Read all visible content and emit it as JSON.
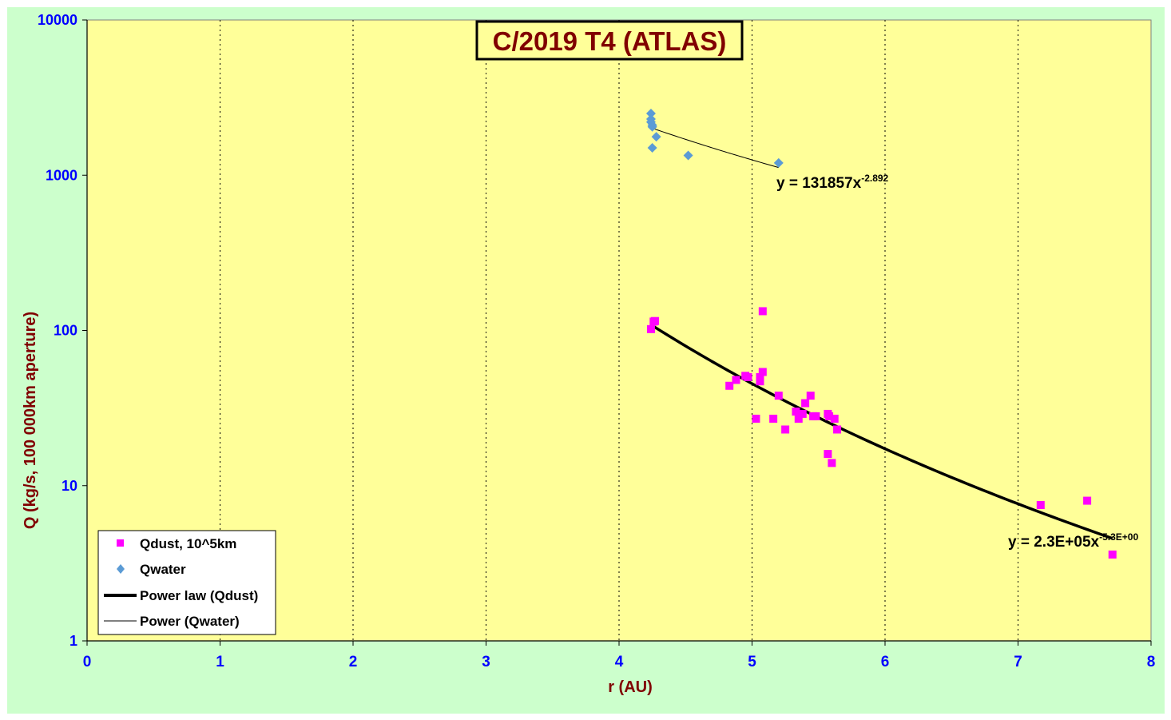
{
  "chart_data": {
    "type": "scatter",
    "title": "C/2019 T4 (ATLAS)",
    "xlabel": "r (AU)",
    "ylabel": "Q (kg/s, 100 000km aperture)",
    "xlim": [
      0,
      8
    ],
    "ylim": [
      1,
      10000
    ],
    "yscale": "log",
    "x_ticks": [
      "0",
      "1",
      "2",
      "3",
      "4",
      "5",
      "6",
      "7",
      "8"
    ],
    "y_ticks": [
      "1",
      "10",
      "100",
      "1000",
      "10000"
    ],
    "grid": "vertical",
    "legend_position": "bottom-left",
    "colors": {
      "background": "#ccffcc",
      "plot_area": "#ffff99",
      "qdust": "#ff00ff",
      "qwater": "#5b9bd5",
      "tick_labels": "#0000ff",
      "axis_titles": "#800000"
    },
    "series": [
      {
        "name": "Qdust, 10^5km",
        "marker": "square",
        "x": [
          4.24,
          4.26,
          4.27,
          4.83,
          4.88,
          4.95,
          4.97,
          5.03,
          5.06,
          5.06,
          5.08,
          5.08,
          5.16,
          5.2,
          5.25,
          5.33,
          5.35,
          5.38,
          5.4,
          5.44,
          5.46,
          5.48,
          5.57,
          5.57,
          5.58,
          5.6,
          5.62,
          5.64,
          7.17,
          7.52,
          7.71
        ],
        "y": [
          102,
          114,
          115,
          44,
          48,
          51,
          50,
          27,
          47,
          50,
          54,
          133,
          27,
          38,
          23,
          30,
          27,
          29,
          34,
          38,
          28,
          28,
          29,
          16,
          28,
          14,
          27,
          23,
          7.5,
          8.0,
          3.6
        ]
      },
      {
        "name": "Qwater",
        "marker": "diamond",
        "x": [
          4.24,
          4.24,
          4.24,
          4.25,
          4.25,
          4.25,
          4.28,
          4.52,
          5.2
        ],
        "y": [
          2500,
          2300,
          2200,
          2100,
          2050,
          1500,
          1770,
          1340,
          1200
        ]
      }
    ],
    "trendlines": [
      {
        "name": "Power law (Qdust)",
        "type": "power",
        "a": 230000,
        "b": -5.3,
        "x_range": [
          4.24,
          7.71
        ],
        "equation": "y = 2.3E+05x",
        "exponent": "-5.3E+00"
      },
      {
        "name": "Power (Qwater)",
        "type": "power",
        "a": 131857,
        "b": -2.892,
        "x_range": [
          4.24,
          5.2
        ],
        "equation": "y = 131857x",
        "exponent": "-2.892"
      }
    ],
    "legend": [
      "Qdust, 10^5km",
      "Qwater",
      "Power law (Qdust)",
      "Power (Qwater)"
    ]
  }
}
